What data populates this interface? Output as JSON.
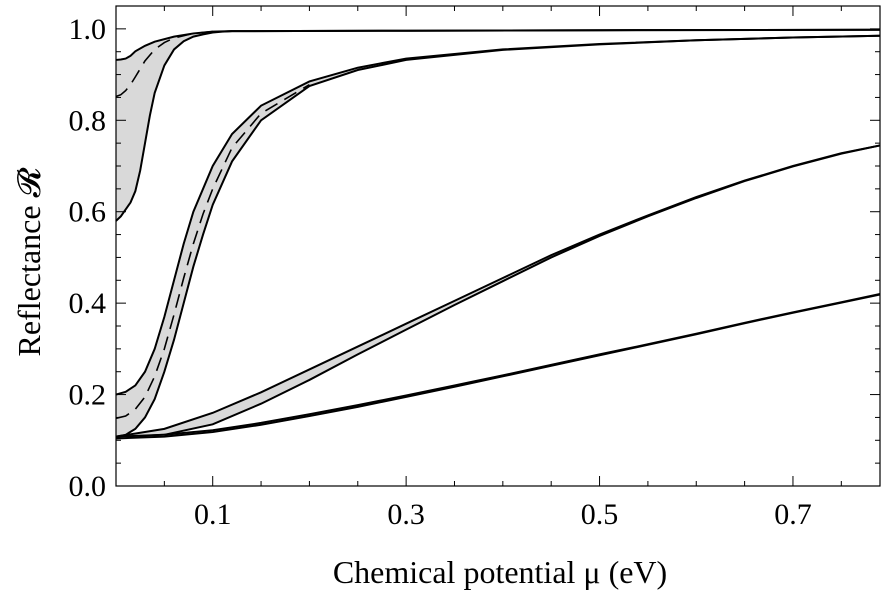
{
  "chart_data": {
    "type": "line",
    "title": "",
    "xlabel": "Chemical potential μ (eV)",
    "ylabel": "Reflectance 𝓡",
    "xlim": [
      0.0,
      0.79
    ],
    "ylim": [
      0.0,
      1.05
    ],
    "x_ticks": [
      0.1,
      0.3,
      0.5,
      0.7
    ],
    "x_tick_labels": [
      "0.1",
      "0.3",
      "0.5",
      "0.7"
    ],
    "y_ticks": [
      0.0,
      0.2,
      0.4,
      0.6,
      0.8,
      1.0
    ],
    "y_tick_labels": [
      "0.0",
      "0.2",
      "0.4",
      "0.6",
      "0.8",
      "1.0"
    ],
    "grid": false,
    "legend": "none",
    "fill_color": "#d9d9d9",
    "line_color": "#000000",
    "bands": [
      {
        "upper": [
          [
            0.0,
            0.932
          ],
          [
            0.005,
            0.933
          ],
          [
            0.01,
            0.935
          ],
          [
            0.015,
            0.941
          ],
          [
            0.02,
            0.951
          ],
          [
            0.03,
            0.963
          ],
          [
            0.04,
            0.972
          ],
          [
            0.06,
            0.983
          ],
          [
            0.08,
            0.99
          ],
          [
            0.1,
            0.994
          ],
          [
            0.12,
            0.995
          ],
          [
            0.14,
            0.995
          ],
          [
            0.3,
            0.996
          ],
          [
            0.5,
            0.997
          ],
          [
            0.79,
            0.998
          ]
        ],
        "lower": [
          [
            0.0,
            0.58
          ],
          [
            0.005,
            0.59
          ],
          [
            0.01,
            0.605
          ],
          [
            0.015,
            0.62
          ],
          [
            0.02,
            0.645
          ],
          [
            0.025,
            0.69
          ],
          [
            0.03,
            0.75
          ],
          [
            0.035,
            0.81
          ],
          [
            0.04,
            0.86
          ],
          [
            0.05,
            0.92
          ],
          [
            0.06,
            0.955
          ],
          [
            0.07,
            0.973
          ],
          [
            0.08,
            0.983
          ],
          [
            0.09,
            0.988
          ],
          [
            0.1,
            0.992
          ],
          [
            0.11,
            0.994
          ],
          [
            0.12,
            0.995
          ],
          [
            0.14,
            0.995
          ],
          [
            0.3,
            0.996
          ],
          [
            0.5,
            0.997
          ],
          [
            0.79,
            0.998
          ]
        ],
        "mid": [
          [
            0.0,
            0.852
          ],
          [
            0.005,
            0.856
          ],
          [
            0.01,
            0.865
          ],
          [
            0.015,
            0.878
          ],
          [
            0.02,
            0.895
          ],
          [
            0.03,
            0.93
          ],
          [
            0.04,
            0.955
          ],
          [
            0.05,
            0.97
          ],
          [
            0.06,
            0.98
          ],
          [
            0.08,
            0.99
          ],
          [
            0.1,
            0.994
          ],
          [
            0.12,
            0.995
          ]
        ]
      },
      {
        "upper": [
          [
            0.0,
            0.2
          ],
          [
            0.01,
            0.206
          ],
          [
            0.02,
            0.22
          ],
          [
            0.03,
            0.25
          ],
          [
            0.04,
            0.3
          ],
          [
            0.05,
            0.37
          ],
          [
            0.06,
            0.45
          ],
          [
            0.07,
            0.53
          ],
          [
            0.08,
            0.6
          ],
          [
            0.1,
            0.7
          ],
          [
            0.12,
            0.77
          ],
          [
            0.15,
            0.832
          ],
          [
            0.2,
            0.885
          ],
          [
            0.25,
            0.915
          ],
          [
            0.3,
            0.935
          ],
          [
            0.4,
            0.955
          ],
          [
            0.5,
            0.967
          ],
          [
            0.6,
            0.975
          ],
          [
            0.7,
            0.981
          ],
          [
            0.79,
            0.985
          ]
        ],
        "lower": [
          [
            0.0,
            0.108
          ],
          [
            0.01,
            0.112
          ],
          [
            0.02,
            0.125
          ],
          [
            0.03,
            0.15
          ],
          [
            0.04,
            0.19
          ],
          [
            0.05,
            0.25
          ],
          [
            0.06,
            0.32
          ],
          [
            0.07,
            0.4
          ],
          [
            0.08,
            0.48
          ],
          [
            0.09,
            0.55
          ],
          [
            0.1,
            0.615
          ],
          [
            0.12,
            0.71
          ],
          [
            0.15,
            0.8
          ],
          [
            0.2,
            0.875
          ],
          [
            0.25,
            0.91
          ],
          [
            0.3,
            0.932
          ],
          [
            0.4,
            0.954
          ],
          [
            0.5,
            0.966
          ],
          [
            0.6,
            0.975
          ],
          [
            0.7,
            0.981
          ],
          [
            0.79,
            0.985
          ]
        ],
        "mid": [
          [
            0.0,
            0.148
          ],
          [
            0.01,
            0.153
          ],
          [
            0.02,
            0.168
          ],
          [
            0.03,
            0.195
          ],
          [
            0.04,
            0.24
          ],
          [
            0.05,
            0.3
          ],
          [
            0.06,
            0.375
          ],
          [
            0.07,
            0.455
          ],
          [
            0.08,
            0.53
          ],
          [
            0.09,
            0.595
          ],
          [
            0.1,
            0.65
          ],
          [
            0.12,
            0.74
          ],
          [
            0.15,
            0.815
          ],
          [
            0.2,
            0.878
          ]
        ]
      },
      {
        "upper": [
          [
            0.0,
            0.108
          ],
          [
            0.05,
            0.125
          ],
          [
            0.1,
            0.16
          ],
          [
            0.15,
            0.205
          ],
          [
            0.2,
            0.255
          ],
          [
            0.25,
            0.305
          ],
          [
            0.3,
            0.355
          ],
          [
            0.35,
            0.405
          ],
          [
            0.4,
            0.455
          ],
          [
            0.45,
            0.505
          ],
          [
            0.5,
            0.55
          ],
          [
            0.55,
            0.592
          ],
          [
            0.6,
            0.632
          ],
          [
            0.65,
            0.668
          ],
          [
            0.7,
            0.7
          ],
          [
            0.75,
            0.728
          ],
          [
            0.79,
            0.745
          ]
        ],
        "lower": [
          [
            0.0,
            0.106
          ],
          [
            0.05,
            0.112
          ],
          [
            0.1,
            0.135
          ],
          [
            0.15,
            0.18
          ],
          [
            0.2,
            0.232
          ],
          [
            0.25,
            0.288
          ],
          [
            0.3,
            0.342
          ],
          [
            0.35,
            0.396
          ],
          [
            0.4,
            0.448
          ],
          [
            0.45,
            0.5
          ],
          [
            0.5,
            0.547
          ],
          [
            0.55,
            0.59
          ],
          [
            0.6,
            0.63
          ],
          [
            0.65,
            0.667
          ],
          [
            0.7,
            0.699
          ],
          [
            0.75,
            0.727
          ],
          [
            0.79,
            0.745
          ]
        ]
      },
      {
        "upper": [
          [
            0.0,
            0.108
          ],
          [
            0.05,
            0.112
          ],
          [
            0.1,
            0.122
          ],
          [
            0.15,
            0.138
          ],
          [
            0.2,
            0.157
          ],
          [
            0.25,
            0.177
          ],
          [
            0.3,
            0.198
          ],
          [
            0.35,
            0.22
          ],
          [
            0.4,
            0.242
          ],
          [
            0.45,
            0.265
          ],
          [
            0.5,
            0.288
          ],
          [
            0.55,
            0.31
          ],
          [
            0.6,
            0.333
          ],
          [
            0.65,
            0.357
          ],
          [
            0.7,
            0.38
          ],
          [
            0.75,
            0.402
          ],
          [
            0.79,
            0.42
          ]
        ],
        "lower": [
          [
            0.0,
            0.104
          ],
          [
            0.05,
            0.108
          ],
          [
            0.1,
            0.118
          ],
          [
            0.15,
            0.134
          ],
          [
            0.2,
            0.153
          ],
          [
            0.25,
            0.173
          ],
          [
            0.3,
            0.195
          ],
          [
            0.35,
            0.217
          ],
          [
            0.4,
            0.24
          ],
          [
            0.45,
            0.263
          ],
          [
            0.5,
            0.286
          ],
          [
            0.55,
            0.309
          ],
          [
            0.6,
            0.332
          ],
          [
            0.65,
            0.356
          ],
          [
            0.7,
            0.379
          ],
          [
            0.75,
            0.401
          ],
          [
            0.79,
            0.419
          ]
        ]
      }
    ]
  }
}
